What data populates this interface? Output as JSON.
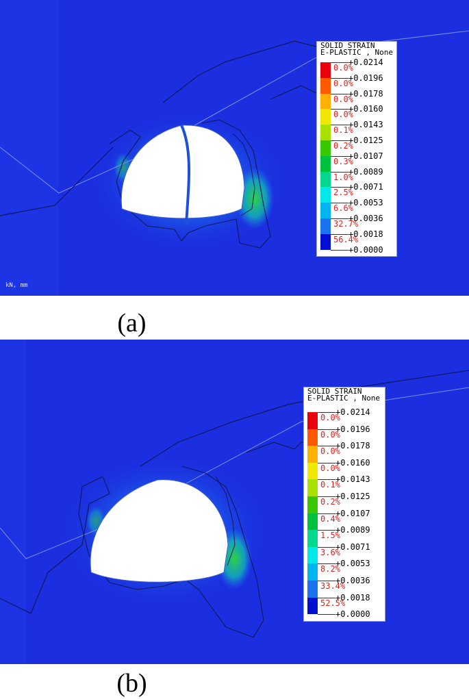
{
  "panels": [
    {
      "id": "a",
      "caption": "(a)",
      "units": "kN, mm",
      "legend": {
        "title_line1": "SOLID STRAIN",
        "title_line2": "E-PLASTIC , None",
        "ticks": [
          "+0.0214",
          "+0.0196",
          "+0.0178",
          "+0.0160",
          "+0.0143",
          "+0.0125",
          "+0.0107",
          "+0.0089",
          "+0.0071",
          "+0.0053",
          "+0.0036",
          "+0.0018",
          "+0.0000"
        ],
        "percents": [
          "0.0%",
          "0.0%",
          "0.0%",
          "0.0%",
          "0.1%",
          "0.2%",
          "0.3%",
          "1.0%",
          "2.5%",
          "6.6%",
          "32.7%",
          "56.4%"
        ]
      }
    },
    {
      "id": "b",
      "caption": "(b)",
      "units": "",
      "legend": {
        "title_line1": "SOLID STRAIN",
        "title_line2": "E-PLASTIC , None",
        "ticks": [
          "+0.0214",
          "+0.0196",
          "+0.0178",
          "+0.0160",
          "+0.0143",
          "+0.0125",
          "+0.0107",
          "+0.0089",
          "+0.0071",
          "+0.0053",
          "+0.0036",
          "+0.0018",
          "+0.0000"
        ],
        "percents": [
          "0.0%",
          "0.0%",
          "0.0%",
          "0.0%",
          "0.1%",
          "0.2%",
          "0.4%",
          "1.5%",
          "3.6%",
          "8.2%",
          "33.4%",
          "52.5%"
        ]
      }
    }
  ],
  "colors": {
    "background_field": "#1b2fe0",
    "swatches": [
      "#e8000c",
      "#ff5a00",
      "#ffb000",
      "#f0e800",
      "#a8e000",
      "#38c800",
      "#00c040",
      "#00d890",
      "#00e8e8",
      "#00b4f0",
      "#1a74f0",
      "#0010d0"
    ],
    "percent_text": "#e0201a"
  }
}
